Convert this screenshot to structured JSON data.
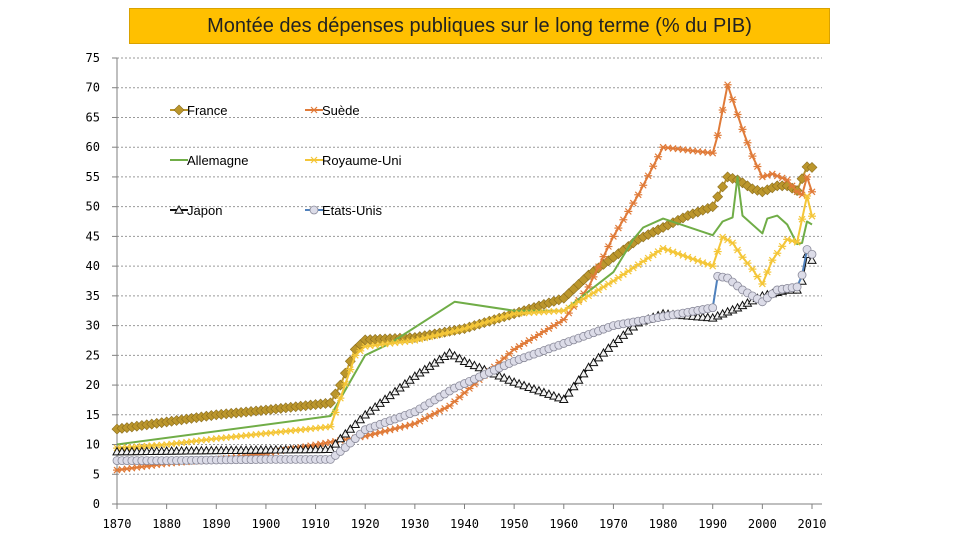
{
  "chart_data": {
    "type": "line",
    "title": "Montée des dépenses publiques sur le long terme (% du PIB)",
    "xlim": [
      1870,
      2010
    ],
    "ylim": [
      0,
      75
    ],
    "x_ticks": [
      1870,
      1880,
      1890,
      1900,
      1910,
      1920,
      1930,
      1940,
      1950,
      1960,
      1970,
      1980,
      1990,
      2000,
      2010
    ],
    "y_ticks": [
      0,
      5,
      10,
      15,
      20,
      25,
      30,
      35,
      40,
      45,
      50,
      55,
      60,
      65,
      70,
      75
    ],
    "grid": "horizontal-dashed",
    "legend_position": "top-left",
    "series": [
      {
        "name": "France",
        "color": "#bb962c",
        "marker": "diamond",
        "points": [
          [
            1870,
            12.6
          ],
          [
            1880,
            13.8
          ],
          [
            1890,
            15
          ],
          [
            1900,
            15.8
          ],
          [
            1913,
            17
          ],
          [
            1915,
            20
          ],
          [
            1918,
            26
          ],
          [
            1920,
            27.6
          ],
          [
            1930,
            28
          ],
          [
            1940,
            29.5
          ],
          [
            1950,
            32
          ],
          [
            1960,
            34.6
          ],
          [
            1965,
            38.5
          ],
          [
            1970,
            41.5
          ],
          [
            1975,
            44.5
          ],
          [
            1980,
            46.5
          ],
          [
            1985,
            48.5
          ],
          [
            1990,
            50
          ],
          [
            1993,
            55
          ],
          [
            1995,
            54.5
          ],
          [
            1998,
            53
          ],
          [
            2000,
            52.5
          ],
          [
            2003,
            53.5
          ],
          [
            2005,
            53.5
          ],
          [
            2007,
            52.7
          ],
          [
            2009,
            56.7
          ],
          [
            2010,
            56.6
          ]
        ]
      },
      {
        "name": "Suède",
        "color": "#e07b39",
        "marker": "star",
        "points": [
          [
            1870,
            5.7
          ],
          [
            1880,
            6.8
          ],
          [
            1890,
            7.5
          ],
          [
            1900,
            8.5
          ],
          [
            1913,
            10.4
          ],
          [
            1920,
            11.4
          ],
          [
            1930,
            13.5
          ],
          [
            1937,
            16.5
          ],
          [
            1950,
            26
          ],
          [
            1960,
            31
          ],
          [
            1965,
            36.5
          ],
          [
            1970,
            45
          ],
          [
            1975,
            52
          ],
          [
            1980,
            60
          ],
          [
            1985,
            59.5
          ],
          [
            1990,
            59
          ],
          [
            1991,
            62
          ],
          [
            1993,
            70.5
          ],
          [
            1996,
            63
          ],
          [
            1998,
            58.5
          ],
          [
            2000,
            55
          ],
          [
            2002,
            55.5
          ],
          [
            2005,
            54.5
          ],
          [
            2007,
            52.5
          ],
          [
            2008,
            52
          ],
          [
            2009,
            55
          ],
          [
            2010,
            52.5
          ]
        ]
      },
      {
        "name": "Allemagne",
        "color": "#70ad47",
        "marker": "none",
        "points": [
          [
            1870,
            10
          ],
          [
            1913,
            14.8
          ],
          [
            1920,
            25
          ],
          [
            1925,
            27
          ],
          [
            1938,
            34
          ],
          [
            1950,
            32.5
          ],
          [
            1960,
            32.5
          ],
          [
            1970,
            39
          ],
          [
            1974,
            44.5
          ],
          [
            1976,
            46.5
          ],
          [
            1980,
            48
          ],
          [
            1990,
            45.2
          ],
          [
            1992,
            47.5
          ],
          [
            1994,
            48.2
          ],
          [
            1995,
            55
          ],
          [
            1996,
            48.5
          ],
          [
            2000,
            45.5
          ],
          [
            2001,
            48
          ],
          [
            2003,
            48.5
          ],
          [
            2005,
            47
          ],
          [
            2007,
            43.7
          ],
          [
            2008,
            43.9
          ],
          [
            2009,
            47.5
          ],
          [
            2010,
            47
          ]
        ]
      },
      {
        "name": "Royaume-Uni",
        "color": "#f4c638",
        "marker": "star",
        "points": [
          [
            1870,
            9.4
          ],
          [
            1880,
            10
          ],
          [
            1890,
            11
          ],
          [
            1913,
            13
          ],
          [
            1918,
            25
          ],
          [
            1920,
            26.5
          ],
          [
            1930,
            27.5
          ],
          [
            1940,
            29.5
          ],
          [
            1950,
            32
          ],
          [
            1960,
            32.5
          ],
          [
            1970,
            37.5
          ],
          [
            1980,
            43
          ],
          [
            1990,
            40
          ],
          [
            1992,
            44.9
          ],
          [
            1994,
            43.9
          ],
          [
            1996,
            41.5
          ],
          [
            1998,
            39.5
          ],
          [
            2000,
            37
          ],
          [
            2002,
            41
          ],
          [
            2005,
            44.5
          ],
          [
            2007,
            44
          ],
          [
            2009,
            51.8
          ],
          [
            2010,
            48.4
          ]
        ]
      },
      {
        "name": "Japon",
        "color": "#111111",
        "marker": "triangle",
        "points": [
          [
            1870,
            8.8
          ],
          [
            1880,
            8.9
          ],
          [
            1890,
            9
          ],
          [
            1900,
            9.1
          ],
          [
            1913,
            9.2
          ],
          [
            1915,
            11
          ],
          [
            1920,
            15
          ],
          [
            1930,
            21.5
          ],
          [
            1937,
            25.4
          ],
          [
            1940,
            24
          ],
          [
            1950,
            20.5
          ],
          [
            1960,
            17.6
          ],
          [
            1965,
            23
          ],
          [
            1970,
            27
          ],
          [
            1975,
            30.5
          ],
          [
            1980,
            32
          ],
          [
            1990,
            31.3
          ],
          [
            1995,
            33
          ],
          [
            2000,
            35
          ],
          [
            2005,
            36
          ],
          [
            2007,
            36
          ],
          [
            2008,
            37.5
          ],
          [
            2009,
            42
          ],
          [
            2010,
            41
          ]
        ]
      },
      {
        "name": "Etats-Unis",
        "color": "#4f81bd",
        "marker": "circle",
        "points": [
          [
            1870,
            7.3
          ],
          [
            1880,
            7.3
          ],
          [
            1890,
            7.4
          ],
          [
            1900,
            7.5
          ],
          [
            1913,
            7.5
          ],
          [
            1916,
            9.5
          ],
          [
            1920,
            12.5
          ],
          [
            1930,
            15.5
          ],
          [
            1938,
            19.5
          ],
          [
            1950,
            24
          ],
          [
            1960,
            27
          ],
          [
            1970,
            30
          ],
          [
            1980,
            31.5
          ],
          [
            1990,
            33
          ],
          [
            1991,
            38.3
          ],
          [
            1993,
            38
          ],
          [
            1996,
            36
          ],
          [
            1998,
            35
          ],
          [
            2000,
            34
          ],
          [
            2003,
            36
          ],
          [
            2007,
            36.5
          ],
          [
            2008,
            38.5
          ],
          [
            2009,
            42.8
          ],
          [
            2010,
            42
          ]
        ]
      }
    ]
  }
}
